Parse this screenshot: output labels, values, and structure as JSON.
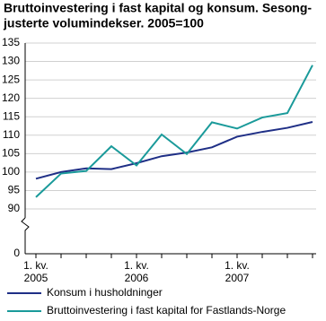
{
  "chart_data": {
    "type": "line",
    "title": [
      "Bruttoinvestering i fast kapital og konsum. Sesong-",
      "justerte volumindekser. 2005=100"
    ],
    "categories": [
      "1. kv. 2005",
      null,
      null,
      null,
      "1. kv. 2006",
      null,
      null,
      null,
      "1. kv. 2007",
      null,
      null,
      null
    ],
    "series": [
      {
        "name": "Konsum i husholdninger",
        "color": "#1f2f86",
        "values": [
          98.2,
          100,
          101,
          100.8,
          102.4,
          104.3,
          105.3,
          106.7,
          109.6,
          110.9,
          112,
          113.6
        ]
      },
      {
        "name": "Bruttoinvestering i fast kapital for Fastlands-Norge",
        "color": "#1a9a9a",
        "values": [
          93.2,
          99.6,
          100.3,
          107,
          101.8,
          110.2,
          104.9,
          113.5,
          111.8,
          114.8,
          116,
          129
        ]
      }
    ],
    "ylim": [
      0,
      135
    ],
    "yticks": [
      0,
      90,
      95,
      100,
      105,
      110,
      115,
      120,
      125,
      130,
      135
    ],
    "y_break": [
      0,
      90
    ],
    "grid": true
  }
}
